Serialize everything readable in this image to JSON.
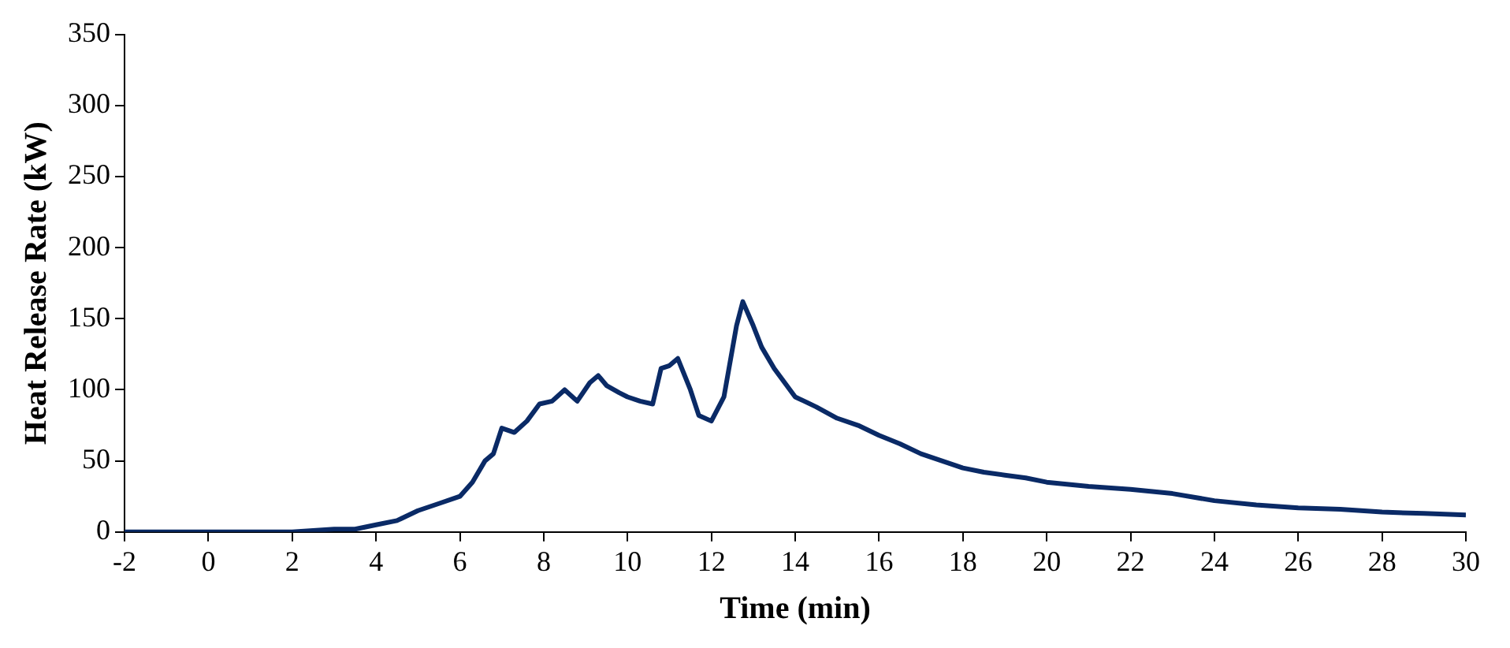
{
  "chart_data": {
    "type": "line",
    "xlabel": "Time (min)",
    "ylabel": "Heat Release Rate (kW)",
    "xlim": [
      -2,
      30
    ],
    "ylim": [
      0,
      350
    ],
    "xticks": [
      -2,
      0,
      2,
      4,
      6,
      8,
      10,
      12,
      14,
      16,
      18,
      20,
      22,
      24,
      26,
      28,
      30
    ],
    "yticks": [
      0,
      50,
      100,
      150,
      200,
      250,
      300,
      350
    ],
    "grid": false,
    "legend": false,
    "marker": "none",
    "line_style": "solid",
    "series": [
      {
        "color": "#0a2a66",
        "x": [
          -2,
          0,
          2,
          3,
          3.5,
          4,
          4.5,
          5,
          5.5,
          6,
          6.3,
          6.6,
          6.8,
          7,
          7.3,
          7.6,
          7.9,
          8.2,
          8.5,
          8.8,
          9.1,
          9.3,
          9.5,
          9.8,
          10,
          10.3,
          10.6,
          10.8,
          11,
          11.2,
          11.5,
          11.7,
          12,
          12.3,
          12.6,
          12.75,
          13,
          13.2,
          13.5,
          14,
          14.5,
          15,
          15.5,
          16,
          16.5,
          17,
          17.5,
          18,
          18.5,
          19,
          19.5,
          20,
          21,
          22,
          23,
          24,
          25,
          26,
          27,
          28,
          29,
          30
        ],
        "values": [
          0,
          0,
          0,
          2,
          2,
          5,
          8,
          15,
          20,
          25,
          35,
          50,
          55,
          73,
          70,
          78,
          90,
          92,
          100,
          92,
          105,
          110,
          103,
          98,
          95,
          92,
          90,
          115,
          117,
          122,
          100,
          82,
          78,
          95,
          145,
          162,
          145,
          130,
          115,
          95,
          88,
          80,
          75,
          68,
          62,
          55,
          50,
          45,
          42,
          40,
          38,
          35,
          32,
          30,
          27,
          22,
          19,
          17,
          16,
          14,
          13,
          12
        ]
      }
    ]
  }
}
